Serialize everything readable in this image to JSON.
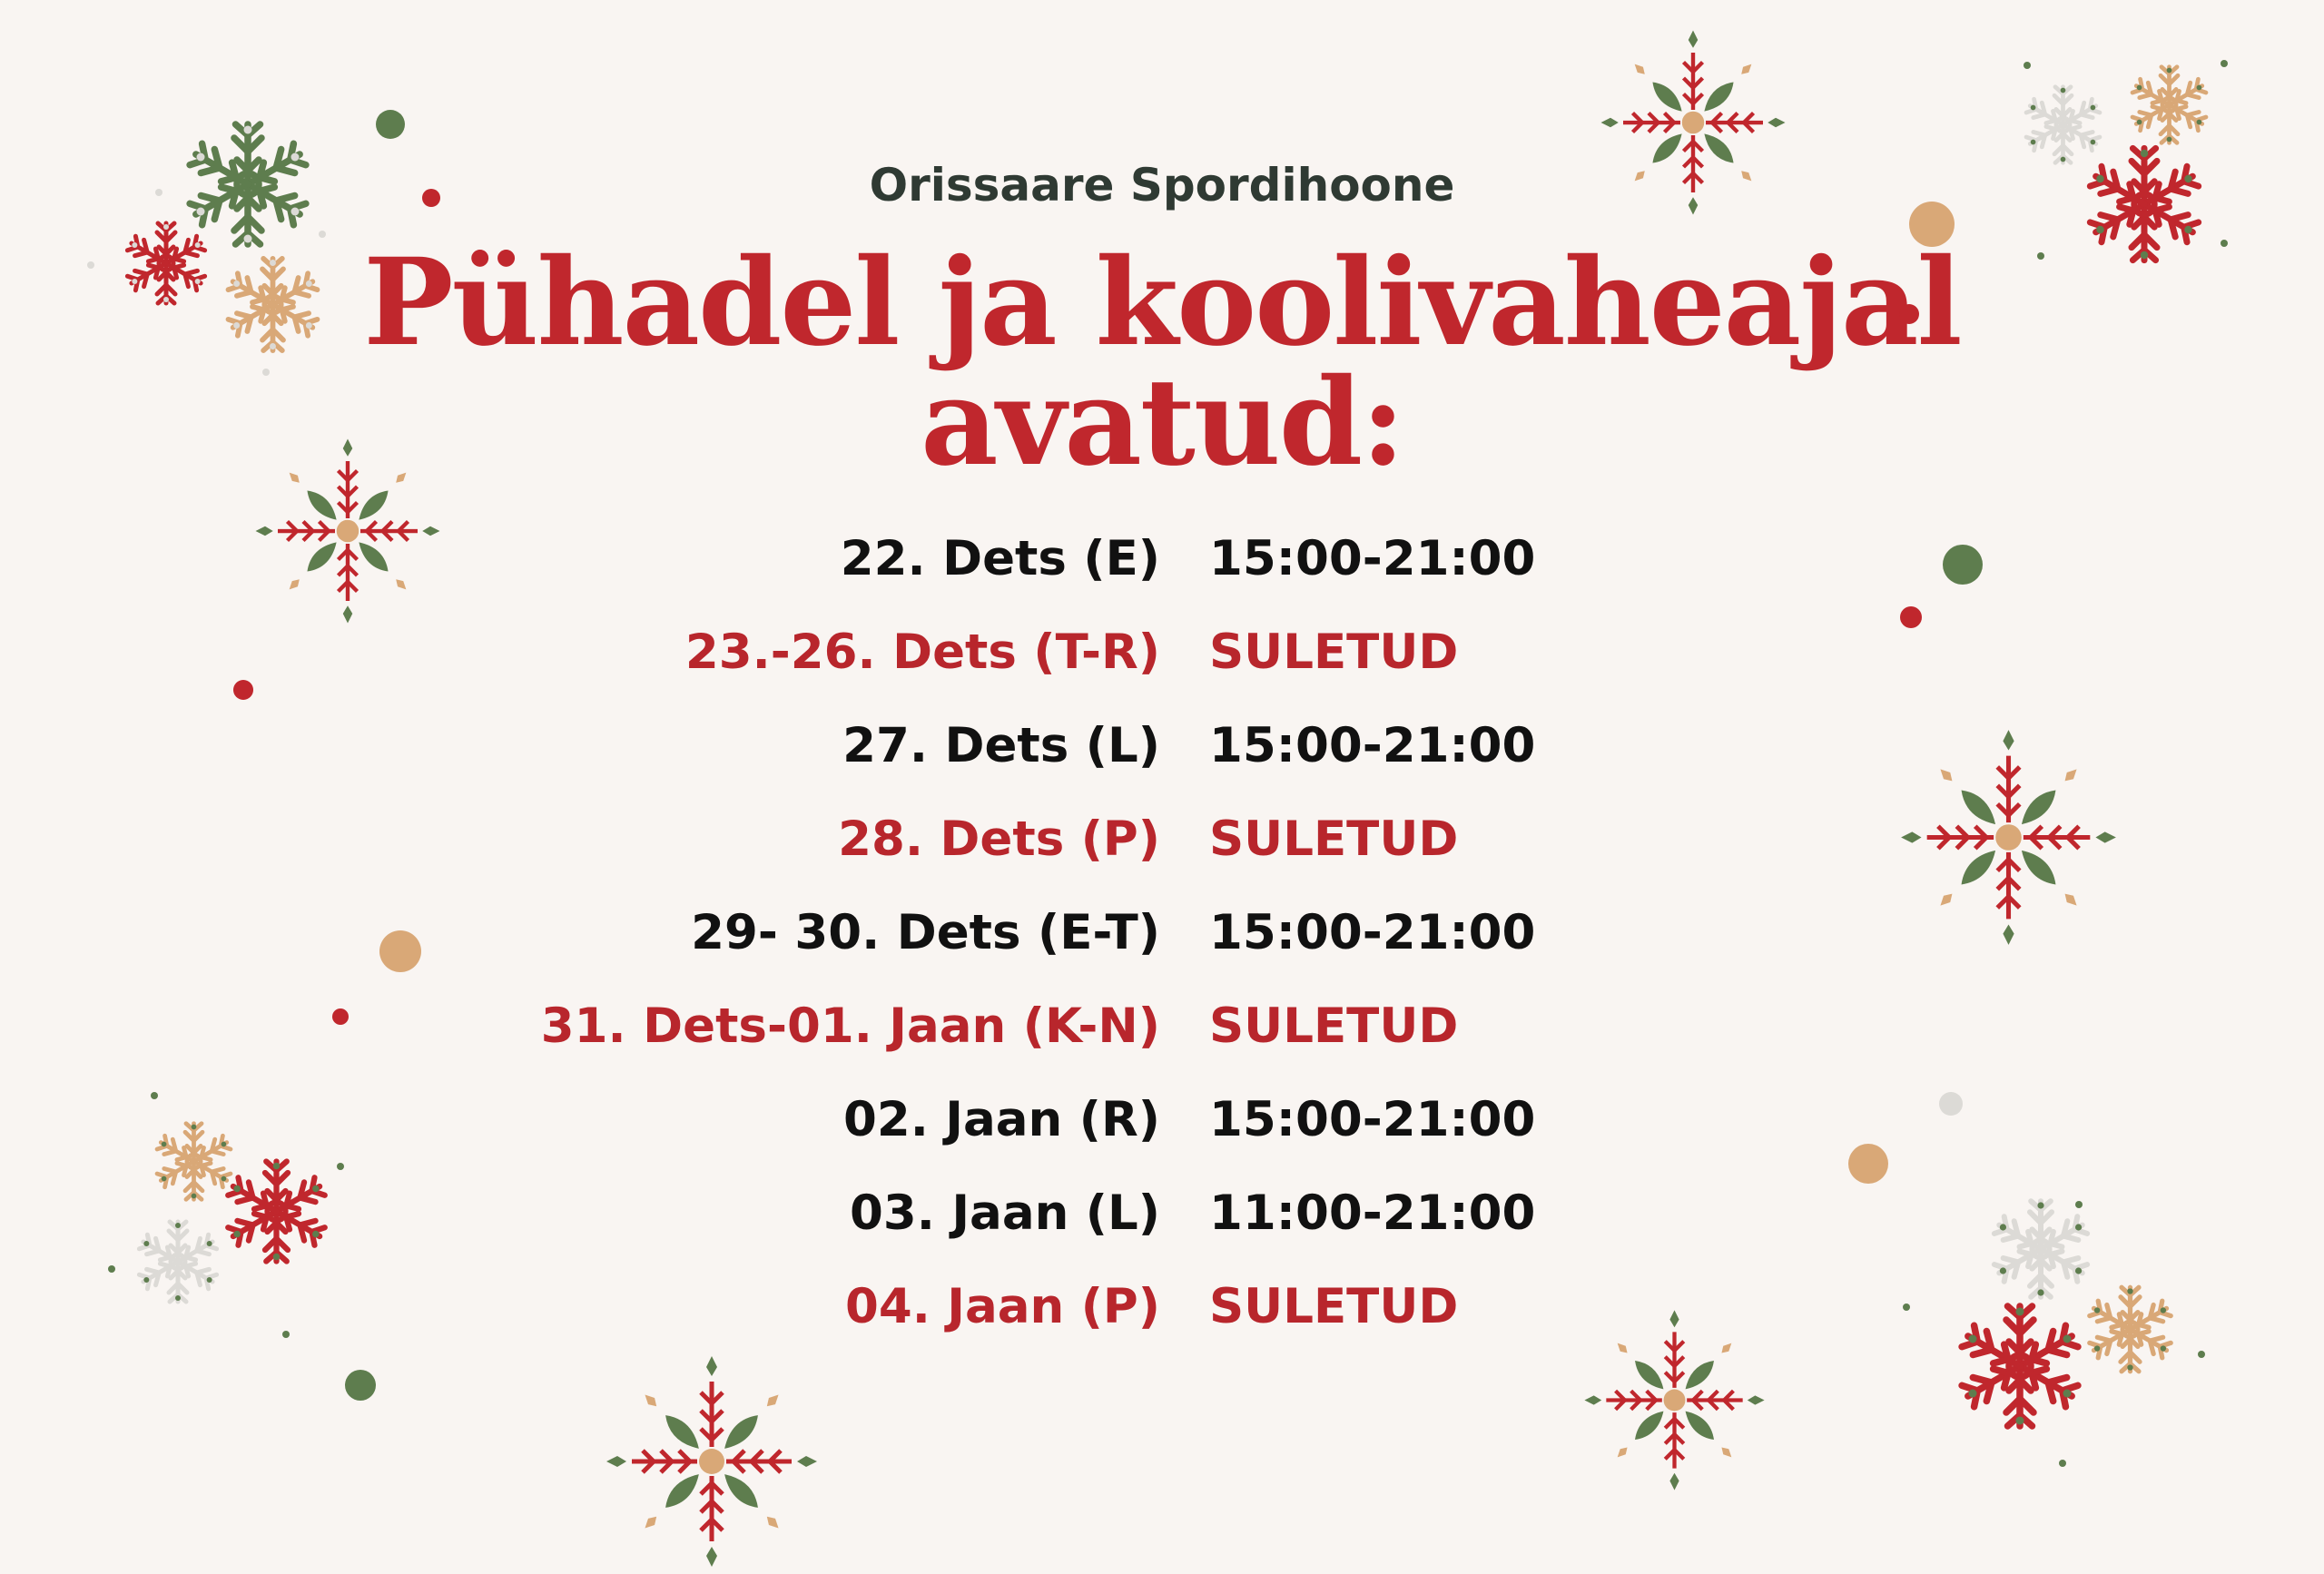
{
  "header": {
    "venue": "Orissaare Spordihoone",
    "title_line1": "Pühadel ja koolivaheajal",
    "title_line2": "avatud:"
  },
  "schedule": [
    {
      "day": "22. Dets (E)",
      "hours": "15:00-21:00",
      "status": "open"
    },
    {
      "day": "23.-26. Dets (T-R)",
      "hours": "SULETUD",
      "status": "closed"
    },
    {
      "day": "27. Dets (L)",
      "hours": "15:00-21:00",
      "status": "open"
    },
    {
      "day": "28. Dets (P)",
      "hours": "SULETUD",
      "status": "closed"
    },
    {
      "day": "29- 30. Dets (E-T)",
      "hours": "15:00-21:00",
      "status": "open"
    },
    {
      "day": "31. Dets-01. Jaan (K-N)",
      "hours": "SULETUD",
      "status": "closed"
    },
    {
      "day": "02. Jaan (R)",
      "hours": "15:00-21:00",
      "status": "open"
    },
    {
      "day": "03. Jaan (L)",
      "hours": "11:00-21:00",
      "status": "open"
    },
    {
      "day": "04. Jaan (P)",
      "hours": "SULETUD",
      "status": "closed"
    }
  ],
  "colors": {
    "background": "#f9f5f2",
    "red": "#c0272d",
    "green": "#5e7d4e",
    "tan": "#d9a877",
    "light_gray": "#dcdad6",
    "text_dark": "#111111"
  },
  "decorations": {
    "icons": [
      "snowflake-icon",
      "compass-star-icon",
      "dot-icon"
    ]
  }
}
